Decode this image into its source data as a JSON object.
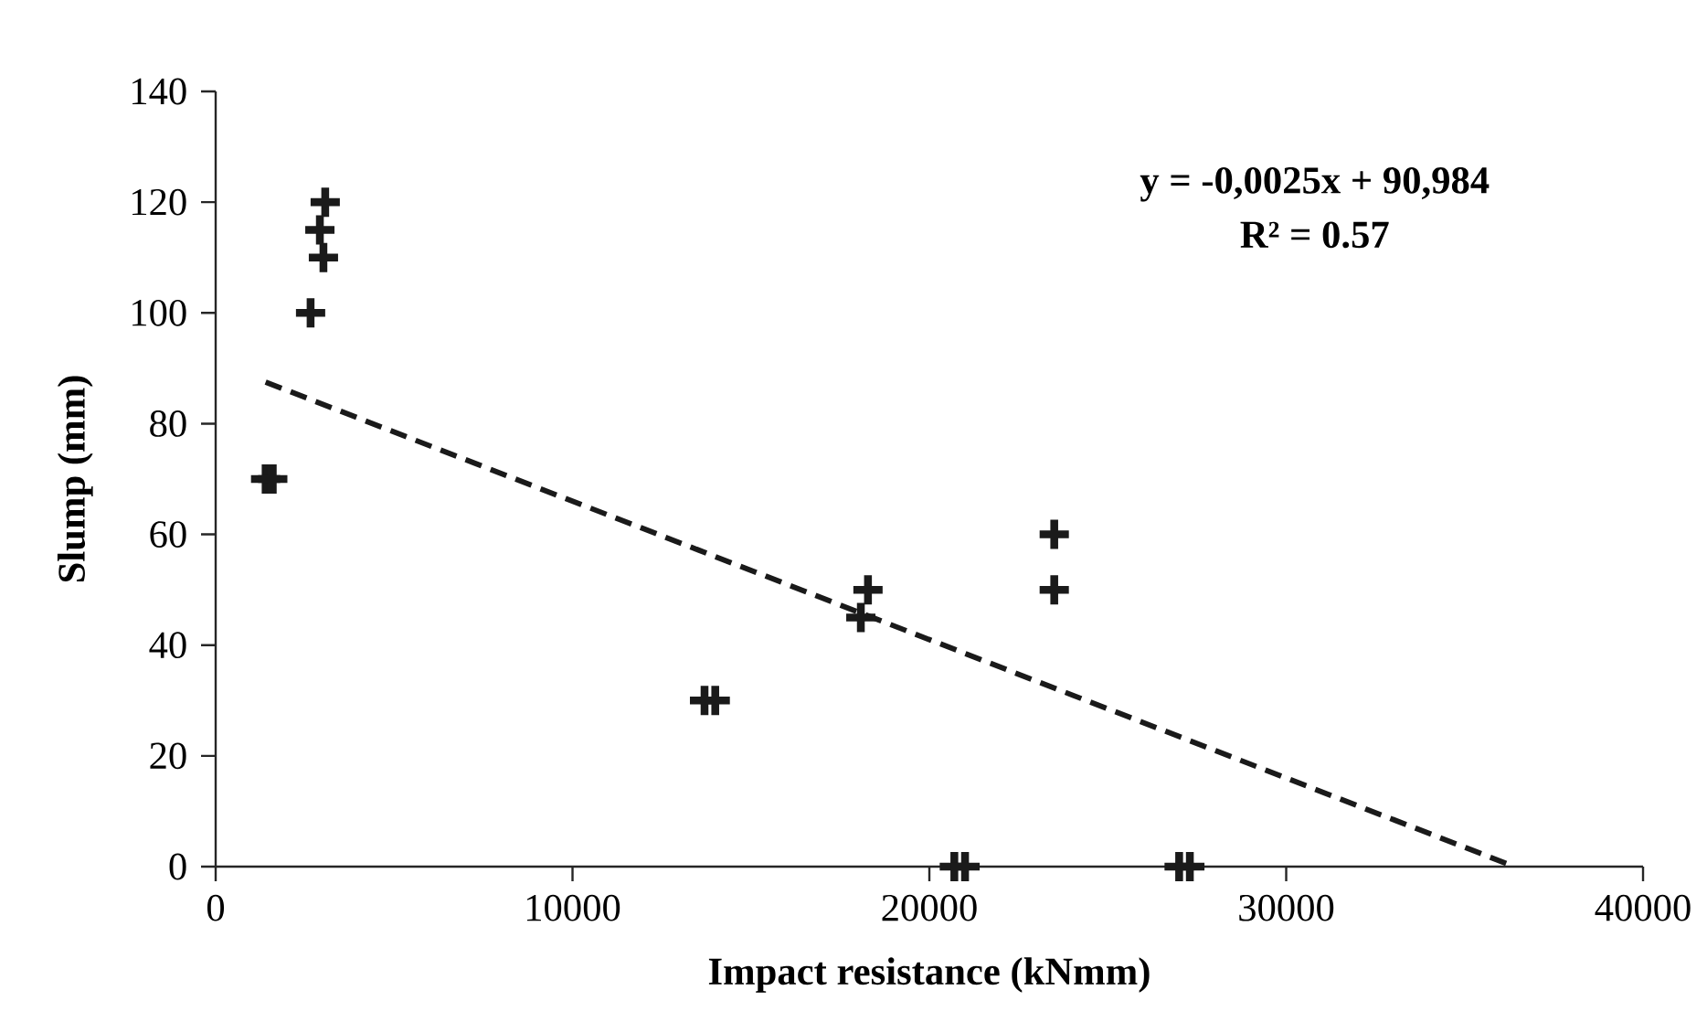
{
  "chart_data": {
    "type": "scatter",
    "xlabel": "Impact resistance (kNmm)",
    "ylabel": "Slump (mm)",
    "annotations": [
      "y = -0,0025x + 90,984",
      "R² = 0.57"
    ],
    "xlim": [
      0,
      40000
    ],
    "xticks": [
      0,
      10000,
      20000,
      30000,
      40000
    ],
    "ylim": [
      0,
      140
    ],
    "yticks": [
      0,
      20,
      40,
      60,
      80,
      100,
      120,
      140
    ],
    "series": [
      {
        "color": "#1a1a1a",
        "marker": "cross",
        "x": [
          1400,
          1600,
          2660,
          3020,
          2920,
          3070,
          13700,
          14000,
          18080,
          18280,
          20700,
          21000,
          23500,
          23500,
          27000,
          27300
        ],
        "values": [
          70,
          70,
          100,
          110,
          115,
          120,
          30,
          30,
          45,
          50,
          0,
          0,
          50,
          60,
          0,
          0
        ]
      },
      {
        "type": "line",
        "color": "#1a1a1a",
        "marker": "none",
        "line_style": "dashed",
        "x": [
          1400,
          36400
        ],
        "values": [
          87.5,
          0
        ]
      }
    ]
  }
}
